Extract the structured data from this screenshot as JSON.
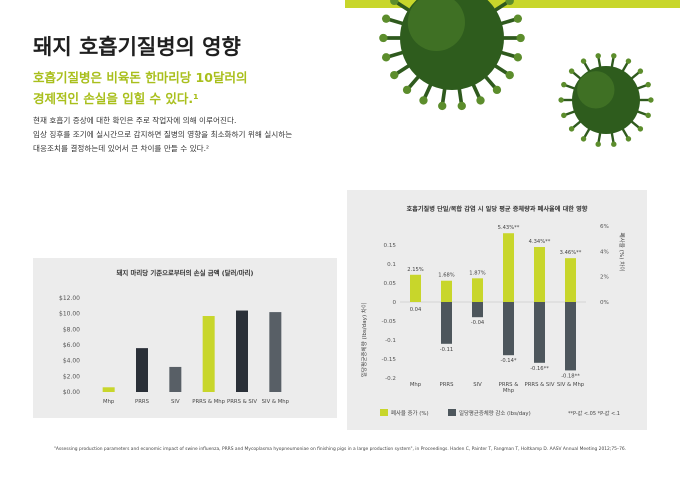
{
  "header": {
    "title": "돼지 호흡기질병의 영향",
    "subtitle_lines": [
      "호흡기질병은 비육돈 한마리당 10달러의",
      "경제적인 손실을 입힐 수 있다.¹"
    ],
    "body_lines": [
      "현재 호흡기 증상에 대한 확인은 주로 작업자에 의해 이루어진다.",
      "임상 징후를 조기에 실시간으로 감지하면 질병의 영향을 최소화하기 위해 실시하는",
      "대응조치를 결정하는데 있어서 큰 차이를 만들 수 있다.²"
    ]
  },
  "chart_data": [
    {
      "type": "bar",
      "title": "돼지 마리당 기준으로부터의 손실 금액 (달러/마리)",
      "categories": [
        "Mhp",
        "PRRS",
        "SIV",
        "PRRS & Mhp",
        "PRRS & SIV",
        "SIV & Mhp"
      ],
      "values": [
        0.6,
        5.6,
        3.2,
        9.7,
        10.4,
        10.2
      ],
      "colors": [
        "#c8d62b",
        "#2a3038",
        "#585f66",
        "#c8d62b",
        "#2a3038",
        "#585f66"
      ],
      "ylim": [
        0,
        12
      ],
      "yticks": [
        {
          "value": 0,
          "label": "$0.00"
        },
        {
          "value": 2,
          "label": "$2.00"
        },
        {
          "value": 4,
          "label": "$4.00"
        },
        {
          "value": 6,
          "label": "$6.00"
        },
        {
          "value": 8,
          "label": "$8.00"
        },
        {
          "value": 10,
          "label": "$10.00"
        },
        {
          "value": 12,
          "label": "$12.00"
        }
      ],
      "grid": false
    },
    {
      "type": "bar",
      "title": "호흡기질병 단일/복합 감염 시 일당 평균 증체량과 폐사율에 대한 영향",
      "y_label": "일당평균증체량 (lbs/day) 차이",
      "y2_label": "폐사율 (%) 차이",
      "categories": [
        "Mhp",
        "PRRS",
        "SIV",
        "PRRS & Mhp",
        "PRRS & SIV",
        "SIV & Mhp"
      ],
      "series": [
        {
          "name": "폐사율 증가 (%)",
          "color": "#c8d62b",
          "axis": "y2",
          "values": [
            2.15,
            1.68,
            1.87,
            5.43,
            4.34,
            3.46
          ],
          "value_labels": [
            "2.15%",
            "1.68%",
            "1.87%",
            "5.43%**",
            "4.34%**",
            "3.46%**"
          ]
        },
        {
          "name": "일당평균증체량 감소 (lbs/day)",
          "color": "#4d565c",
          "values": [
            0.04,
            -0.11,
            -0.04,
            -0.14,
            -0.16,
            -0.18
          ],
          "value_labels": [
            "0.04",
            "-0.11",
            "-0.04",
            "-0.14*",
            "-0.16**",
            "-0.18**"
          ]
        }
      ],
      "ylim": [
        -0.2,
        0.2
      ],
      "yticks": [
        -0.2,
        -0.15,
        -0.1,
        -0.05,
        0,
        0.05,
        0.1,
        0.15
      ],
      "y2lim": [
        -6,
        6
      ],
      "y2ticks": [
        {
          "value": 0,
          "label": "0%"
        },
        {
          "value": 2,
          "label": "2%"
        },
        {
          "value": 4,
          "label": "4%"
        },
        {
          "value": 6,
          "label": "6%"
        }
      ],
      "note": "**P-값 <.05    *P-값 <.1"
    }
  ],
  "footnote": "\"Assessing production parameters and economic impact of swine influenza, PRRS and Mycoplasma hyopneumoniae on finishing pigs in a large production system\", in Proceedings. Haden C, Painter T, Fangman T, Holtkamp D. AASV Annual Meeting 2012;75–76."
}
